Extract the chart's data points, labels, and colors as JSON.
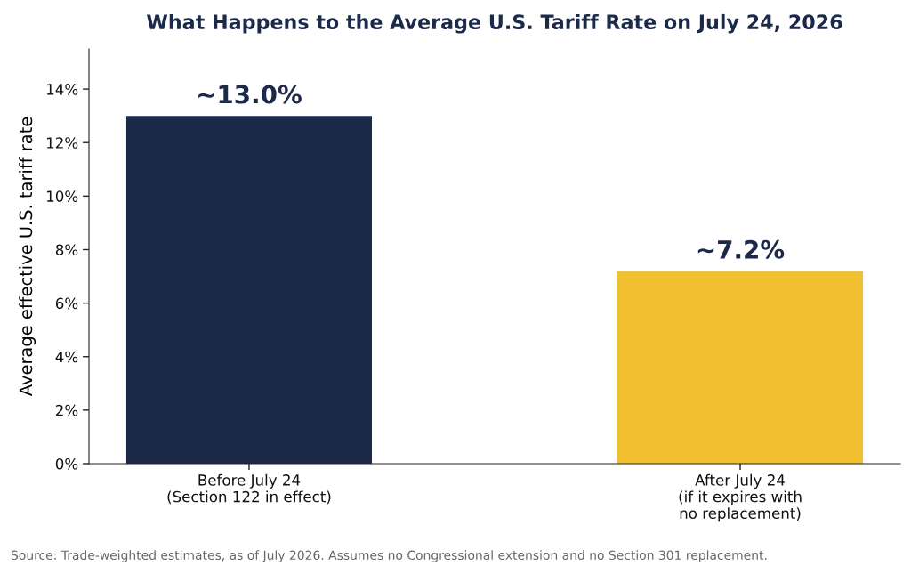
{
  "chart_data": {
    "type": "bar",
    "title": "What Happens to the Average U.S. Tariff Rate on July 24, 2026",
    "ylabel": "Average effective U.S. tariff rate",
    "categories": [
      "Before July 24\n(Section 122 in effect)",
      "After July 24\n(if it expires with\nno replacement)"
    ],
    "values": [
      13.0,
      7.2
    ],
    "colors": [
      "#1c2a4a",
      "#f0c030"
    ],
    "value_labels": [
      "~13.0%",
      "~7.2%"
    ],
    "ylim": [
      0,
      15.5
    ],
    "yticks": [
      {
        "value": 0,
        "label": "0%"
      },
      {
        "value": 2,
        "label": "2%"
      },
      {
        "value": 4,
        "label": "4%"
      },
      {
        "value": 6,
        "label": "6%"
      },
      {
        "value": 8,
        "label": "8%"
      },
      {
        "value": 10,
        "label": "10%"
      },
      {
        "value": 12,
        "label": "12%"
      },
      {
        "value": 14,
        "label": "14%"
      }
    ],
    "grid": false,
    "legend": false,
    "annotations": [
      "Source: Trade-weighted estimates, as of July 2026. Assumes no Congressional extension and no Section 301 replacement."
    ]
  }
}
